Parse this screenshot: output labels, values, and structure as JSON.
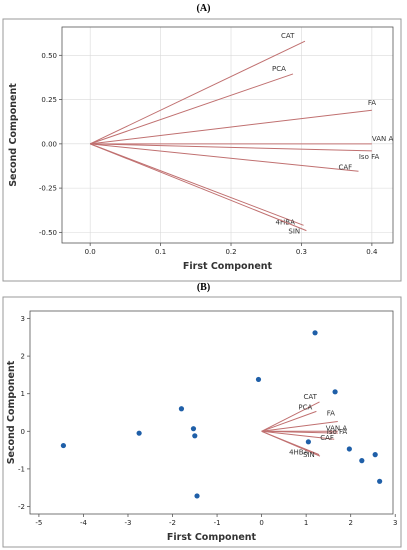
{
  "panels": {
    "a": {
      "label": "(A)"
    },
    "b": {
      "label": "(B)"
    }
  },
  "colors": {
    "vector": "#c07070",
    "point": "#1f5fa8",
    "frame": "#999999",
    "grid": "#d9d9d9"
  },
  "chart_data": [
    {
      "type": "line",
      "subtype": "loading-plot",
      "title": "",
      "xlabel": "First Component",
      "ylabel": "Second Component",
      "xlim": [
        -0.04,
        0.43
      ],
      "ylim": [
        -0.56,
        0.66
      ],
      "xticks": [
        "0.0",
        "0.1",
        "0.2",
        "0.3",
        "0.4"
      ],
      "xtick_values": [
        0.0,
        0.1,
        0.2,
        0.3,
        0.4
      ],
      "yticks": [
        "-0.50",
        "-0.25",
        "0.00",
        "0.25",
        "0.50"
      ],
      "ytick_values": [
        -0.5,
        -0.25,
        0.0,
        0.25,
        0.5
      ],
      "grid": true,
      "vectors": [
        {
          "label": "CAT",
          "x": 0.305,
          "y": 0.58
        },
        {
          "label": "PCA",
          "x": 0.288,
          "y": 0.395
        },
        {
          "label": "FA",
          "x": 0.4,
          "y": 0.19
        },
        {
          "label": "VAN A",
          "x": 0.4,
          "y": 0.0
        },
        {
          "label": "Iso FA",
          "x": 0.4,
          "y": -0.04
        },
        {
          "label": "CAF",
          "x": 0.381,
          "y": -0.155
        },
        {
          "label": "4HBA",
          "x": 0.303,
          "y": -0.46
        },
        {
          "label": "SIN",
          "x": 0.307,
          "y": -0.49
        }
      ]
    },
    {
      "type": "scatter",
      "subtype": "biplot",
      "title": "",
      "xlabel": "First Component",
      "ylabel": "Second Component",
      "xlim": [
        -5.2,
        2.95
      ],
      "ylim": [
        -2.2,
        3.2
      ],
      "xticks": [
        "-5",
        "-4",
        "-3",
        "-2",
        "-1",
        "0",
        "1",
        "2",
        "3"
      ],
      "xtick_values": [
        -5,
        -4,
        -3,
        -2,
        -1,
        0,
        1,
        2,
        3
      ],
      "yticks": [
        "-2",
        "-1",
        "0",
        "1",
        "2",
        "3"
      ],
      "ytick_values": [
        -2,
        -1,
        0,
        1,
        2,
        3
      ],
      "grid": false,
      "points": [
        {
          "x": -4.45,
          "y": -0.38
        },
        {
          "x": -2.75,
          "y": -0.05
        },
        {
          "x": -1.8,
          "y": 0.6
        },
        {
          "x": -1.53,
          "y": 0.07
        },
        {
          "x": -1.5,
          "y": -0.12
        },
        {
          "x": -1.45,
          "y": -1.72
        },
        {
          "x": -0.07,
          "y": 1.38
        },
        {
          "x": 1.05,
          "y": -0.28
        },
        {
          "x": 1.2,
          "y": 2.62
        },
        {
          "x": 1.65,
          "y": 1.05
        },
        {
          "x": 1.97,
          "y": -0.47
        },
        {
          "x": 2.25,
          "y": -0.78
        },
        {
          "x": 2.55,
          "y": -0.62
        },
        {
          "x": 2.65,
          "y": -1.33
        }
      ],
      "vectors": [
        {
          "label": "CAT",
          "x": 1.3,
          "y": 0.78
        },
        {
          "label": "PCA",
          "x": 1.23,
          "y": 0.53
        },
        {
          "label": "FA",
          "x": 1.71,
          "y": 0.26
        },
        {
          "label": "VAN A",
          "x": 1.71,
          "y": 0.0
        },
        {
          "label": "Iso FA",
          "x": 1.71,
          "y": -0.05
        },
        {
          "label": "CAF",
          "x": 1.63,
          "y": -0.21
        },
        {
          "label": "4HBA",
          "x": 1.29,
          "y": -0.62
        },
        {
          "label": "SIN",
          "x": 1.31,
          "y": -0.66
        }
      ]
    }
  ]
}
